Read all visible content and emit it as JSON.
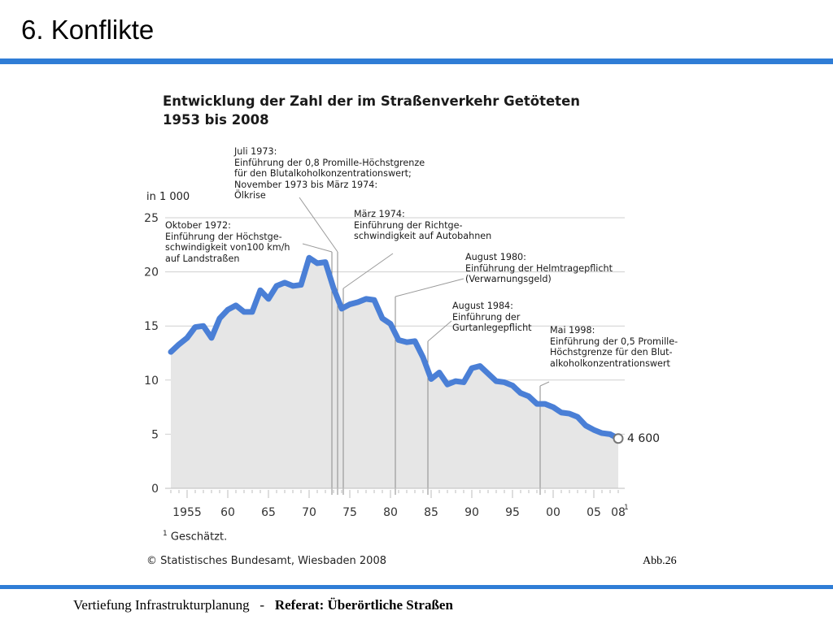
{
  "slide": {
    "title": "6. Konflikte",
    "footer_left": "Vertiefung Infrastrukturplanung   -   ",
    "footer_right": "Referat: Überörtliche Straßen",
    "figure_label": "Abb.26"
  },
  "colors": {
    "accent_bar": "#2f7dd6",
    "line": "#4a7fd6",
    "area": "#e6e6e6"
  },
  "chart_data": {
    "type": "area",
    "title_line1": "Entwicklung der Zahl der im Straßenverkehr Getöteten",
    "title_line2": "1953 bis 2008",
    "ylabel": "in 1 000",
    "ylim": [
      0,
      25
    ],
    "xlim": [
      1953,
      2008
    ],
    "yticks": [
      0,
      5,
      10,
      15,
      20,
      25
    ],
    "xtick_labels": [
      {
        "x": 1955,
        "label": "1955"
      },
      {
        "x": 1960,
        "label": "60"
      },
      {
        "x": 1965,
        "label": "65"
      },
      {
        "x": 1970,
        "label": "70"
      },
      {
        "x": 1975,
        "label": "75"
      },
      {
        "x": 1980,
        "label": "80"
      },
      {
        "x": 1985,
        "label": "85"
      },
      {
        "x": 1990,
        "label": "90"
      },
      {
        "x": 1995,
        "label": "95"
      },
      {
        "x": 2000,
        "label": "00"
      },
      {
        "x": 2005,
        "label": "05"
      },
      {
        "x": 2008,
        "label": "08"
      }
    ],
    "x": [
      1953,
      1954,
      1955,
      1956,
      1957,
      1958,
      1959,
      1960,
      1961,
      1962,
      1963,
      1964,
      1965,
      1966,
      1967,
      1968,
      1969,
      1970,
      1971,
      1972,
      1973,
      1974,
      1975,
      1976,
      1977,
      1978,
      1979,
      1980,
      1981,
      1982,
      1983,
      1984,
      1985,
      1986,
      1987,
      1988,
      1989,
      1990,
      1991,
      1992,
      1993,
      1994,
      1995,
      1996,
      1997,
      1998,
      1999,
      2000,
      2001,
      2002,
      2003,
      2004,
      2005,
      2006,
      2007,
      2008
    ],
    "values": [
      12.6,
      13.3,
      13.9,
      14.9,
      15.0,
      13.9,
      15.7,
      16.5,
      16.9,
      16.3,
      16.3,
      18.3,
      17.5,
      18.7,
      19.0,
      18.7,
      18.8,
      21.3,
      20.8,
      20.9,
      18.5,
      16.6,
      17.0,
      17.2,
      17.5,
      17.4,
      15.7,
      15.2,
      13.7,
      13.5,
      13.6,
      12.1,
      10.1,
      10.7,
      9.6,
      9.9,
      9.8,
      11.1,
      11.3,
      10.6,
      9.9,
      9.8,
      9.5,
      8.8,
      8.5,
      7.8,
      7.8,
      7.5,
      7.0,
      6.9,
      6.6,
      5.8,
      5.4,
      5.1,
      5.0,
      4.6
    ],
    "end_label": "4 600",
    "footnote_marker": "1",
    "footnote": "Geschätzt.",
    "source": "© Statistisches Bundesamt, Wiesbaden 2008",
    "annotations": [
      {
        "name": "annotation-oktober-1972",
        "year": 1972.8,
        "lines": [
          "Oktober 1972:",
          "Einführung der Höchstge-",
          "schwindigkeit von100 km/h",
          "auf Landstraßen"
        ]
      },
      {
        "name": "annotation-juli-1973",
        "year": 1973.5,
        "lines": [
          "Juli 1973:",
          "Einführung der 0,8 Promille-Höchstgrenze",
          "für den Blutalkoholkonzentrationswert;",
          "November 1973 bis März 1974:",
          "Ölkrise"
        ]
      },
      {
        "name": "annotation-maerz-1974",
        "year": 1974.2,
        "lines": [
          "März 1974:",
          "Einführung der Richtge-",
          "schwindigkeit auf Autobahnen"
        ]
      },
      {
        "name": "annotation-august-1980",
        "year": 1980.6,
        "lines": [
          "August 1980:",
          "Einführung der Helmtragepflicht",
          "(Verwarnungsgeld)"
        ]
      },
      {
        "name": "annotation-august-1984",
        "year": 1984.6,
        "lines": [
          "August 1984:",
          "Einführung der",
          "Gurtanlegepflicht"
        ]
      },
      {
        "name": "annotation-mai-1998",
        "year": 1998.4,
        "lines": [
          "Mai 1998:",
          "Einführung der 0,5 Promille-",
          "Höchstgrenze für den Blut-",
          "alkoholkonzentrationswert"
        ]
      }
    ]
  }
}
